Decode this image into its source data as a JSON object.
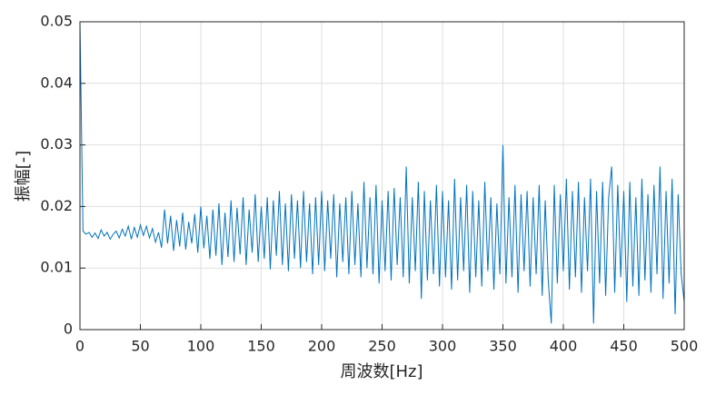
{
  "chart_data": {
    "type": "line",
    "xlabel": "周波数[Hz]",
    "ylabel": "振幅[-]",
    "xlim": [
      0,
      500
    ],
    "ylim": [
      0,
      0.05
    ],
    "xticks": [
      0,
      50,
      100,
      150,
      200,
      250,
      300,
      350,
      400,
      450,
      500
    ],
    "yticks": [
      0,
      0.01,
      0.02,
      0.03,
      0.04,
      0.05
    ],
    "grid": true,
    "x": [
      0,
      2.5,
      5,
      7.5,
      10,
      12.5,
      15,
      17.5,
      20,
      22.5,
      25,
      27.5,
      30,
      32.5,
      35,
      37.5,
      40,
      42.5,
      45,
      47.5,
      50,
      52.5,
      55,
      57.5,
      60,
      62.5,
      65,
      67.5,
      70,
      72.5,
      75,
      77.5,
      80,
      82.5,
      85,
      87.5,
      90,
      92.5,
      95,
      97.5,
      100,
      102.5,
      105,
      107.5,
      110,
      112.5,
      115,
      117.5,
      120,
      122.5,
      125,
      127.5,
      130,
      132.5,
      135,
      137.5,
      140,
      142.5,
      145,
      147.5,
      150,
      152.5,
      155,
      157.5,
      160,
      162.5,
      165,
      167.5,
      170,
      172.5,
      175,
      177.5,
      180,
      182.5,
      185,
      187.5,
      190,
      192.5,
      195,
      197.5,
      200,
      202.5,
      205,
      207.5,
      210,
      212.5,
      215,
      217.5,
      220,
      222.5,
      225,
      227.5,
      230,
      232.5,
      235,
      237.5,
      240,
      242.5,
      245,
      247.5,
      250,
      252.5,
      255,
      257.5,
      260,
      262.5,
      265,
      267.5,
      270,
      272.5,
      275,
      277.5,
      280,
      282.5,
      285,
      287.5,
      290,
      292.5,
      295,
      297.5,
      300,
      302.5,
      305,
      307.5,
      310,
      312.5,
      315,
      317.5,
      320,
      322.5,
      325,
      327.5,
      330,
      332.5,
      335,
      337.5,
      340,
      342.5,
      345,
      347.5,
      350,
      352.5,
      355,
      357.5,
      360,
      362.5,
      365,
      367.5,
      370,
      372.5,
      375,
      377.5,
      380,
      382.5,
      385,
      387.5,
      390,
      392.5,
      395,
      397.5,
      400,
      402.5,
      405,
      407.5,
      410,
      412.5,
      415,
      417.5,
      420,
      422.5,
      425,
      427.5,
      430,
      432.5,
      435,
      437.5,
      440,
      442.5,
      445,
      447.5,
      450,
      452.5,
      455,
      457.5,
      460,
      462.5,
      465,
      467.5,
      470,
      472.5,
      475,
      477.5,
      480,
      482.5,
      485,
      487.5,
      490,
      492.5,
      495,
      497.5,
      500
    ],
    "series": [
      {
        "color": "#0072bd",
        "values": [
          0.05,
          0.016,
          0.0155,
          0.0158,
          0.015,
          0.0157,
          0.0148,
          0.0162,
          0.0152,
          0.0158,
          0.0147,
          0.0155,
          0.016,
          0.0149,
          0.0163,
          0.0152,
          0.0168,
          0.0147,
          0.0166,
          0.015,
          0.017,
          0.0153,
          0.0168,
          0.0149,
          0.0164,
          0.0142,
          0.0158,
          0.0133,
          0.0195,
          0.014,
          0.0185,
          0.0128,
          0.0178,
          0.0135,
          0.019,
          0.013,
          0.0175,
          0.014,
          0.0188,
          0.0125,
          0.02,
          0.0132,
          0.0185,
          0.0115,
          0.0195,
          0.012,
          0.0205,
          0.0105,
          0.019,
          0.0118,
          0.021,
          0.011,
          0.0198,
          0.0122,
          0.0215,
          0.0105,
          0.0195,
          0.0125,
          0.022,
          0.011,
          0.02,
          0.0115,
          0.0215,
          0.0098,
          0.021,
          0.012,
          0.0225,
          0.0105,
          0.0205,
          0.0095,
          0.022,
          0.0115,
          0.021,
          0.01,
          0.0225,
          0.011,
          0.0205,
          0.009,
          0.0215,
          0.0105,
          0.0225,
          0.0095,
          0.021,
          0.0115,
          0.022,
          0.0085,
          0.0205,
          0.011,
          0.0215,
          0.009,
          0.0225,
          0.0105,
          0.0205,
          0.0085,
          0.024,
          0.01,
          0.0215,
          0.009,
          0.0235,
          0.0075,
          0.021,
          0.0095,
          0.0225,
          0.008,
          0.023,
          0.0105,
          0.0215,
          0.0085,
          0.0265,
          0.0075,
          0.0215,
          0.0095,
          0.024,
          0.005,
          0.0225,
          0.008,
          0.021,
          0.009,
          0.0235,
          0.007,
          0.0225,
          0.0085,
          0.021,
          0.0065,
          0.0245,
          0.008,
          0.0215,
          0.0095,
          0.0235,
          0.006,
          0.0225,
          0.0085,
          0.021,
          0.007,
          0.024,
          0.0095,
          0.0215,
          0.0065,
          0.0205,
          0.009,
          0.03,
          0.0075,
          0.0215,
          0.0085,
          0.0235,
          0.006,
          0.022,
          0.0095,
          0.0225,
          0.007,
          0.0215,
          0.009,
          0.0235,
          0.0055,
          0.021,
          0.008,
          0.001,
          0.0235,
          0.0075,
          0.022,
          0.0095,
          0.0245,
          0.0065,
          0.0225,
          0.0085,
          0.024,
          0.006,
          0.0215,
          0.0095,
          0.0245,
          0.001,
          0.0225,
          0.0075,
          0.024,
          0.0055,
          0.0215,
          0.0265,
          0.006,
          0.0235,
          0.0085,
          0.0225,
          0.0045,
          0.024,
          0.007,
          0.0215,
          0.0055,
          0.0245,
          0.008,
          0.022,
          0.006,
          0.0235,
          0.009,
          0.0265,
          0.005,
          0.0225,
          0.0075,
          0.0245,
          0.0025,
          0.022,
          0.009,
          0.0045
        ]
      }
    ]
  }
}
